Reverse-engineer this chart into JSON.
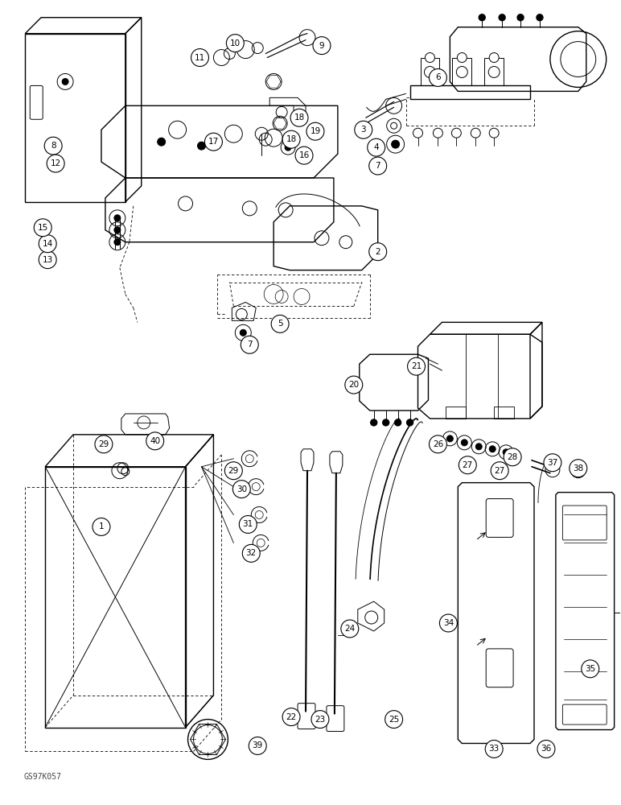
{
  "bg_color": "#ffffff",
  "line_color": "#000000",
  "fig_width": 7.72,
  "fig_height": 10.0,
  "dpi": 100,
  "watermark": "GS97K057"
}
